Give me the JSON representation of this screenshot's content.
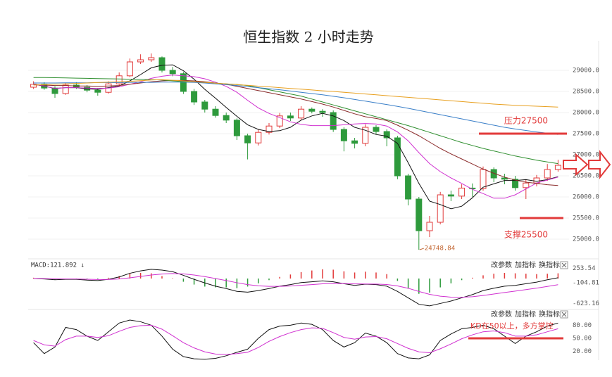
{
  "chart_data": [
    {
      "type": "candlestick",
      "title": "恒生指数 2 小时走势",
      "up_color": "#e23a3a",
      "down_color": "#2e9a3c",
      "grid": true,
      "open": [
        28600,
        28670,
        28580,
        28450,
        28650,
        28600,
        28530,
        28480,
        28680,
        28870,
        29200,
        29250,
        29300,
        29000,
        28920,
        28500,
        28250,
        28080,
        27930,
        27820,
        27450,
        27280,
        27530,
        27680,
        27920,
        27870,
        28080,
        28030,
        28000,
        27600,
        27330,
        27270,
        27650,
        27550,
        27400,
        26500,
        25950,
        25200,
        25400,
        26050,
        26020,
        26210,
        26200,
        26650,
        26450,
        26420,
        26220,
        26330,
        26450,
        26650
      ],
      "high": [
        28740,
        28720,
        28620,
        28700,
        28720,
        28650,
        28580,
        28740,
        28950,
        29280,
        29380,
        29400,
        29330,
        29080,
        28960,
        28560,
        28300,
        28150,
        28000,
        27860,
        27500,
        27600,
        27750,
        27990,
        28000,
        28150,
        28120,
        28080,
        28050,
        27650,
        27400,
        27720,
        27700,
        27600,
        27450,
        26550,
        26000,
        25550,
        26120,
        26150,
        26300,
        26320,
        26720,
        26700,
        26550,
        26500,
        26420,
        26520,
        26780,
        26880
      ],
      "low": [
        28560,
        28540,
        28350,
        28420,
        28560,
        28480,
        28400,
        28450,
        28640,
        28840,
        29150,
        29200,
        28950,
        28860,
        28440,
        28180,
        28000,
        27880,
        27750,
        27350,
        26890,
        27220,
        27480,
        27630,
        27800,
        27820,
        27980,
        27900,
        27540,
        27080,
        27150,
        27200,
        27480,
        27200,
        26420,
        25800,
        24748.84,
        25050,
        25350,
        25900,
        25950,
        26000,
        26150,
        26350,
        26300,
        26150,
        25950,
        26250,
        26380,
        26600
      ],
      "close": [
        28670,
        28580,
        28450,
        28650,
        28600,
        28530,
        28480,
        28680,
        28870,
        29200,
        29250,
        29300,
        29000,
        28920,
        28500,
        28250,
        28080,
        27930,
        27820,
        27450,
        27280,
        27530,
        27680,
        27920,
        27870,
        28080,
        28030,
        28000,
        27600,
        27330,
        27270,
        27650,
        27550,
        27400,
        26500,
        25950,
        25200,
        25400,
        26050,
        26020,
        26210,
        26200,
        26650,
        26450,
        26420,
        26220,
        26330,
        26450,
        26650,
        26750
      ],
      "series": [
        {
          "color": "#111111",
          "values": [
            28670,
            28625,
            28570,
            28590,
            28590,
            28560,
            28550,
            28590,
            28630,
            28750,
            28900,
            29060,
            29120,
            29130,
            28990,
            28790,
            28550,
            28340,
            28120,
            27910,
            27710,
            27600,
            27550,
            27570,
            27650,
            27820,
            27920,
            27980,
            27920,
            27810,
            27650,
            27580,
            27480,
            27440,
            27270,
            26810,
            26320,
            25900,
            25820,
            25720,
            25780,
            25980,
            26230,
            26310,
            26390,
            26390,
            26410,
            26370,
            26410,
            26480
          ]
        },
        {
          "color": "#d030d0",
          "values": [
            28670,
            28630,
            28570,
            28590,
            28590,
            28580,
            28570,
            28580,
            28610,
            28670,
            28730,
            28810,
            28860,
            28890,
            28870,
            28850,
            28800,
            28720,
            28620,
            28480,
            28290,
            28110,
            27980,
            27880,
            27780,
            27720,
            27690,
            27690,
            27690,
            27710,
            27730,
            27740,
            27730,
            27680,
            27540,
            27330,
            27050,
            26790,
            26600,
            26450,
            26320,
            26180,
            26080,
            25970,
            25970,
            26050,
            26190,
            26330,
            26400,
            26470
          ]
        },
        {
          "color": "#8a2a2a",
          "values": [
            28660,
            28650,
            28640,
            28640,
            28630,
            28630,
            28620,
            28630,
            28640,
            28670,
            28700,
            28730,
            28750,
            28760,
            28760,
            28750,
            28730,
            28700,
            28670,
            28620,
            28570,
            28520,
            28470,
            28420,
            28370,
            28320,
            28260,
            28200,
            28130,
            28050,
            27970,
            27900,
            27860,
            27810,
            27700,
            27580,
            27450,
            27300,
            27150,
            27020,
            26900,
            26780,
            26660,
            26560,
            26470,
            26400,
            26350,
            26320,
            26290,
            26270
          ]
        },
        {
          "color": "#2f8f2f",
          "values": [
            28830,
            28830,
            28825,
            28820,
            28815,
            28810,
            28805,
            28800,
            28795,
            28790,
            28785,
            28780,
            28770,
            28750,
            28735,
            28720,
            28710,
            28695,
            28680,
            28665,
            28640,
            28590,
            28540,
            28490,
            28440,
            28390,
            28320,
            28250,
            28180,
            28110,
            28040,
            27970,
            27900,
            27830,
            27760,
            27690,
            27610,
            27530,
            27450,
            27370,
            27290,
            27220,
            27150,
            27090,
            27030,
            26970,
            26920,
            26870,
            26830,
            26790
          ]
        },
        {
          "color": "#3a7fc8",
          "values": [
            28700,
            28700,
            28700,
            28705,
            28705,
            28705,
            28710,
            28710,
            28710,
            28715,
            28715,
            28715,
            28720,
            28720,
            28720,
            28715,
            28700,
            28680,
            28660,
            28640,
            28615,
            28590,
            28565,
            28540,
            28510,
            28480,
            28450,
            28420,
            28385,
            28350,
            28310,
            28270,
            28230,
            28190,
            28145,
            28100,
            28050,
            28000,
            27950,
            27900,
            27850,
            27800,
            27750,
            27700,
            27650,
            27610,
            27575,
            27540,
            27510,
            27480
          ]
        },
        {
          "color": "#e8a020",
          "values": [
            28650,
            28660,
            28670,
            28680,
            28690,
            28700,
            28710,
            28720,
            28730,
            28740,
            28755,
            28770,
            28780,
            28765,
            28750,
            28730,
            28715,
            28695,
            28680,
            28660,
            28645,
            28625,
            28610,
            28590,
            28570,
            28555,
            28535,
            28515,
            28500,
            28480,
            28460,
            28440,
            28420,
            28400,
            28380,
            28360,
            28340,
            28320,
            28300,
            28280,
            28260,
            28240,
            28220,
            28200,
            28185,
            28170,
            28160,
            28150,
            28140,
            28130
          ]
        }
      ],
      "ylim": [
        24600,
        29700
      ],
      "yticks": [
        {
          "value": 25000,
          "label": "25000.0"
        },
        {
          "value": 25500,
          "label": "25500.0"
        },
        {
          "value": 26000,
          "label": "26000.0"
        },
        {
          "value": 26500,
          "label": "26500.0"
        },
        {
          "value": 27000,
          "label": "27000.0"
        },
        {
          "value": 27500,
          "label": "27500.0"
        },
        {
          "value": 28000,
          "label": "28000.0"
        },
        {
          "value": 28500,
          "label": "28500.0"
        },
        {
          "value": 29000,
          "label": "29000.0"
        }
      ],
      "annotations": [
        {
          "text": "压力27500",
          "value": 27500,
          "color": "#e23a3a"
        },
        {
          "text": "支撑25500",
          "value": 25500,
          "color": "#e23a3a"
        }
      ]
    },
    {
      "type": "macd",
      "title": "MACD:121.892 ↓",
      "controls": [
        "改参数",
        "加指标",
        "换指标"
      ],
      "histogram": {
        "up_color": "#e23a3a",
        "down_color": "#2e9a3c",
        "values": [
          20,
          -10,
          -30,
          0,
          -10,
          -20,
          -20,
          20,
          60,
          120,
          140,
          130,
          60,
          10,
          -80,
          -150,
          -200,
          -220,
          -220,
          -240,
          -200,
          -120,
          -40,
          40,
          100,
          160,
          200,
          230,
          220,
          180,
          150,
          170,
          150,
          110,
          -60,
          -250,
          -380,
          -350,
          -220,
          -120,
          -40,
          20,
          80,
          120,
          140,
          130,
          120,
          110,
          120,
          130
        ]
      },
      "series": [
        {
          "color": "#111111",
          "values": [
            0,
            -10,
            -30,
            -20,
            -20,
            -40,
            -50,
            -20,
            40,
            130,
            190,
            230,
            210,
            170,
            80,
            -20,
            -110,
            -190,
            -250,
            -320,
            -340,
            -300,
            -250,
            -190,
            -150,
            -100,
            -80,
            -60,
            -80,
            -130,
            -170,
            -140,
            -150,
            -190,
            -320,
            -480,
            -640,
            -680,
            -620,
            -560,
            -480,
            -400,
            -300,
            -240,
            -190,
            -170,
            -130,
            -90,
            -30,
            20
          ]
        },
        {
          "color": "#d030d0",
          "values": [
            0,
            -2,
            -8,
            -10,
            -12,
            -18,
            -24,
            -23,
            -10,
            18,
            52,
            88,
            112,
            124,
            115,
            88,
            48,
            0,
            -50,
            -104,
            -151,
            -181,
            -195,
            -194,
            -185,
            -168,
            -150,
            -132,
            -122,
            -124,
            -133,
            -135,
            -138,
            -148,
            -183,
            -242,
            -322,
            -393,
            -439,
            -463,
            -466,
            -453,
            -422,
            -386,
            -347,
            -312,
            -276,
            -239,
            -197,
            -154
          ]
        }
      ],
      "ylim": [
        -700,
        350
      ],
      "yticks": [
        253.54,
        -104.81,
        -623.16
      ]
    },
    {
      "type": "line",
      "controls": [
        "改参数",
        "加指标",
        "换指标"
      ],
      "series": [
        {
          "color": "#111111",
          "values": [
            40,
            15,
            30,
            75,
            70,
            55,
            45,
            65,
            85,
            92,
            88,
            80,
            55,
            25,
            8,
            3,
            2,
            4,
            10,
            18,
            25,
            50,
            70,
            78,
            80,
            85,
            82,
            70,
            45,
            30,
            40,
            62,
            55,
            40,
            15,
            5,
            3,
            12,
            45,
            60,
            72,
            75,
            80,
            72,
            55,
            38,
            55,
            65,
            78,
            85
          ]
        },
        {
          "color": "#d030d0",
          "values": [
            45,
            35,
            32,
            47,
            55,
            55,
            52,
            56,
            66,
            75,
            79,
            80,
            71,
            56,
            40,
            28,
            19,
            14,
            13,
            15,
            18,
            29,
            43,
            54,
            63,
            70,
            74,
            73,
            63,
            52,
            48,
            53,
            54,
            49,
            38,
            27,
            19,
            17,
            26,
            37,
            49,
            58,
            65,
            67,
            63,
            55,
            55,
            58,
            65,
            72
          ]
        }
      ],
      "ylim": [
        0,
        100
      ],
      "yticks": [
        {
          "value": 20,
          "label": "20.00"
        },
        {
          "value": 50,
          "label": "50.00"
        },
        {
          "value": 80,
          "label": "80.00"
        }
      ],
      "annotations": [
        {
          "text": "KD在50以上，多方掌控",
          "value": 50,
          "color": "#e23a3a"
        }
      ]
    }
  ]
}
